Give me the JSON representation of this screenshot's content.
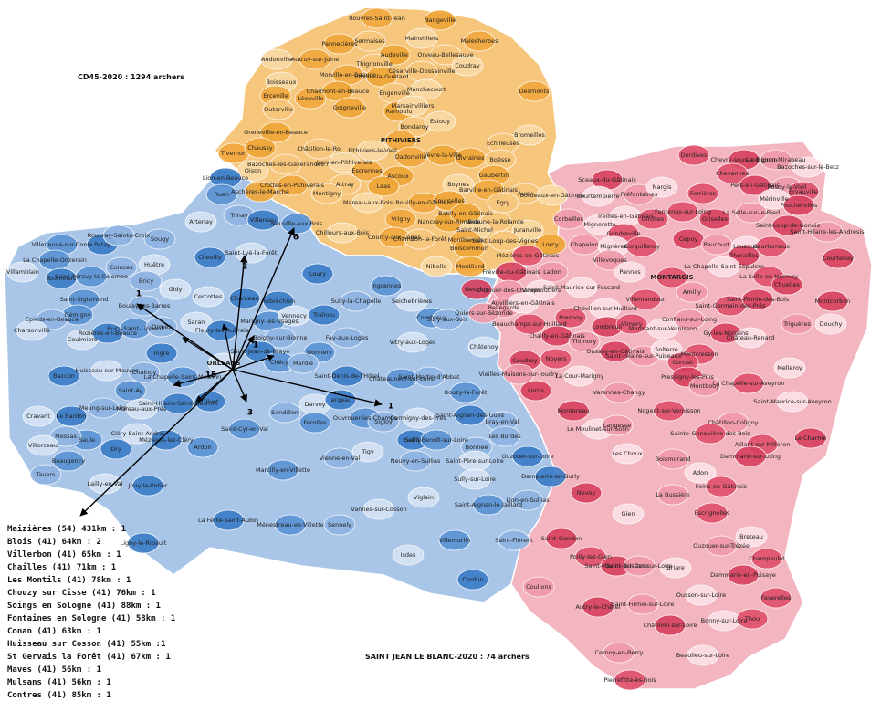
{
  "header": {
    "title": "CD45-2020 : 1294 archers"
  },
  "footer": {
    "caption": "SAINT JEAN LE BLANC-2020 : 74 archers"
  },
  "distant_clubs": [
    "Maizières (54) 431km : 1",
    "Blois (41) 64km : 2",
    "Villerbon (41) 65km : 1",
    "Chailles (41) 71km : 1",
    "Les Montils (41) 78km : 1",
    "Chouzy sur Cisse (41) 76km : 1",
    "Soings en Sologne (41) 88km : 1",
    "Fontaines en Sologne (41) 58km : 1",
    "Conan (41) 63km : 1",
    "Huisseau sur Cosson (41) 55km :1",
    "St Gervais la Forêt (41) 67km : 1",
    "Maves (41) 56km : 1",
    "Mulsans (41) 56km : 1",
    "Contres (41) 85km : 1"
  ],
  "arrows": [
    1,
    2,
    6,
    1,
    15,
    3,
    1
  ],
  "communes": {
    "north": [
      "Rouvres-Saint-Jean",
      "Nangeville",
      "Sermaises",
      "Mainvilliers",
      "Malesherbes",
      "Pannecières",
      "Orveau-Bellesauve",
      "Andonville",
      "Autruy-sur-Juine",
      "Audeville",
      "Thignonville",
      "Coudray",
      "Morville-en-Beauce",
      "Intville-la-Guétard",
      "Césarville-Dossainville",
      "Boisseaux",
      "Erceville",
      "Charmont-en-Beauce",
      "Engenville",
      "Manchecourt",
      "Léouville",
      "Ramoulu",
      "Outarville",
      "Marsainvilliers",
      "Desmonts",
      "Goigneville",
      "Bondaroy",
      "Estouy",
      "PITHIVIERS",
      "Greneville-en-Beauce",
      "Châtillon-le-Roi",
      "Pithiviers-le-Vieil",
      "Dadonville",
      "Yèvre-la-Ville",
      "Echilleuses",
      "Bromeilles",
      "Tivernon",
      "Chaussy",
      "Bazoches-les-Gallerandes",
      "Jouy-en-Pithiverais",
      "Escrennes",
      "Givraines",
      "Boësse",
      "Oison",
      "Gaubertin",
      "Ascoux",
      "Attray",
      "Boynes",
      "Barville-en-Gâtinais",
      "Laas",
      "Auxy",
      "Bordeaux-en-Gâtinais",
      "Crottes-en-Pithiverais",
      "Aschères-le-Marché",
      "Montigny",
      "Mareau-aux-Bois",
      "Bouilly-en-Gâtinais",
      "Courcelles",
      "Egry",
      "Chilleurs-aux-Bois",
      "Vrigny",
      "Nancray-sur-Rimarde",
      "Beaune-la-Rolande",
      "Juranville",
      "Courcy-aux-Loges",
      "Batilly-en-Gâtinais",
      "Chambon-la-Forêt",
      "Saint-Michel",
      "Montbarrois",
      "Boiscommun",
      "Saint-Loup-des-Vignes",
      "Nibelle",
      "Montliard",
      "Lorcy"
    ],
    "west": [
      "Lion-en-Beauce",
      "Ruan",
      "Trinay",
      "Artenay",
      "Villereau",
      "Neuville-aux-Bois",
      "Sougy",
      "Saint-Lyé-la-Forêt",
      "Patay",
      "Villeneuve-sur-Conie",
      "Rouvray-Sainte-Croix",
      "Huêtre",
      "Chevilly",
      "La Chapelle-Onzerain",
      "Coinces",
      "Villamblain",
      "Tournoisis",
      "Saint-Péravy-la-Colombe",
      "Bricy",
      "Gidy",
      "Loury",
      "Saint-Sigismond",
      "Boulay-les-Barres",
      "Cercottes",
      "Rebréchien",
      "Ingrannes",
      "Sully-la-Chapelle",
      "Seichebrières",
      "Chanteau",
      "Gémigny",
      "Epieds-en-Beauce",
      "Coulmiers",
      "Rozières-en-Beauce",
      "Bucy-Saint-Liphard",
      "Ormes",
      "Saran",
      "Fleury-les-Aubrais",
      "Marigny-les-Usages",
      "Boigny-sur-Bionne",
      "Vennecy",
      "Traînou",
      "Combreux",
      "Sury-aux-Bois",
      "Charsonville",
      "Ingré",
      "Donnery",
      "Fay-aux-Loges",
      "Vitry-aux-Loges",
      "Saint-Jean-de-Braye",
      "Chécy",
      "Mardié",
      "Huisseau-sur-Mauves",
      "Baccon",
      "La Chapelle-Saint-Mesmin",
      "Chaingy",
      "ORLEANS",
      "Saint-Denis-de-l'Hôtel",
      "Châteauneuf-sur-Loire",
      "Saint-Martin-d'Abbat",
      "Châtenoy",
      "Saint-Hilaire-Saint-Mesmin",
      "Saint-Ay",
      "Meung-sur-Loire",
      "Mareau-aux-Prés",
      "Olivet",
      "Saint-Cyr-en-Val",
      "Sandillon",
      "Darvoy",
      "Jargeau",
      "Ouvrouer-les-Champs",
      "Sigloy",
      "Germigny-des-Prés",
      "Saint-Aignan-des-Gués",
      "Bouzy-la-Forêt",
      "Bray-en-Val",
      "Cravant",
      "Le Bardon",
      "Férolles",
      "Vienne-en-Val",
      "Tigy",
      "Guilly",
      "Saint-Benoît-sur-Loire",
      "Les Bordes",
      "Cléry-Saint-André",
      "Mézières-lez-Cléry",
      "Baule",
      "Messas",
      "Villorceau",
      "Dry",
      "Ardon",
      "Bonnée",
      "Saint-Père-sur-Loire",
      "Ouzouer-sur-Loire",
      "Beaugency",
      "Tavers",
      "Lailly-en-Val",
      "Jouy-le-Potier",
      "Marcilly-en-Villette",
      "Neuvy-en-Sullias",
      "Sully-sur-Loire",
      "Dampierre-en-Burly",
      "Saint-Aignan-le-Jaillard",
      "Lion-en-Sullias",
      "Viglain",
      "La Ferté-Saint-Aubin",
      "Ménestreau-en-Villette",
      "Sennely",
      "Vannes-sur-Cosson",
      "Ligny-le-Ribault",
      "Villemurlin",
      "Saint-Florent",
      "Isdes",
      "Cerdon"
    ],
    "east": [
      "Dordives",
      "Chevry-sous-le-Bignon",
      "Le Bignon-Mirabeau",
      "Bazoches-sur-le-Betz",
      "Chevannes",
      "Sceaux-du-Gâtinais",
      "Préfontaines",
      "Nargis",
      "Ferrières",
      "Pers-en-Gâtinais",
      "Rosoy-le-Vieil",
      "Courtempierre",
      "Fontenay-sur-Loing",
      "Griselles",
      "La Selle-sur-le-Bied",
      "Mérinville",
      "Ervauville",
      "Fouchérolles",
      "Corbeilles",
      "Treilles-en-Gâtinais",
      "Girolles",
      "Saint-Loup-de-Gonois",
      "Saint-Hilaire-les-Andrésis",
      "Mignerette",
      "Gondreville",
      "Cepoy",
      "Paucourt",
      "Louzouer",
      "Courtemaux",
      "Courtenay",
      "Chapelon",
      "Mignères",
      "Corquilleroy",
      "Thorailles",
      "Villevoques",
      "La Chapelle-Saint-Sépulcre",
      "Mézières-en-Gâtinais",
      "Fréville-du-Gâtinais",
      "Ladon",
      "Pannes",
      "MONTARGIS",
      "Nesploy",
      "Ouzouer-des-Champs",
      "Saint-Maurice-sur-Fessard",
      "La Selle-en-Hermoy",
      "Chuelles",
      "Amilly",
      "Villemoutiers",
      "Villemandeur",
      "Montcorbon",
      "Bellegarde",
      "Chevillon-sur-Huillard",
      "Saint-Germain-des-Prés",
      "Saint-Firmin-des-Bois",
      "Quiers-sur-Bézonde",
      "Auvilliers-en-Gâtinais",
      "Presnoy",
      "Lombreuil",
      "Conflans-sur-Loing",
      "Mormant-sur-Vernisson",
      "Vimory",
      "Gy-les-Nonains",
      "Triguères",
      "Douchy",
      "Beauchamps-sur-Huillard",
      "Chailly-en-Gâtinais",
      "Thimory",
      "Château-Renard",
      "Noyers",
      "Oussoy-en-Gâtinais",
      "Saint-Hilaire-sur-Puiseaux",
      "Solterre",
      "Montcresson",
      "Coudroy",
      "Vieilles-Maisons-sur-Joudry",
      "La Cour-Marigny",
      "Cortrat",
      "Pressigny-les-Pins",
      "Montbouy",
      "Melleroy",
      "La Chapelle-sur-Aveyron",
      "Lorris",
      "Varennes-Changy",
      "Saint-Maurice-sur-Aveyron",
      "Nogent-sur-Vernisson",
      "Montereau",
      "Châtillon-Coligny",
      "Le Moulinet-sur-Solin",
      "Sainte-Geneviève-des-Bois",
      "Le Charme",
      "Langesse",
      "Les Choux",
      "Aillant-sur-Milleron",
      "Dammarie-sur-Loing",
      "Boismorand",
      "Adon",
      "Feins-en-Gâtinais",
      "Nevoy",
      "La Bussière",
      "Gien",
      "Escrignelles",
      "Saint-Gondon",
      "Ouzouer-sur-Trézée",
      "Breteau",
      "Poilly-lez-Gien",
      "Saint-Martin-sur-Ocre",
      "Saint-Brisson-sur-Loire",
      "Briare",
      "Champoulet",
      "Dammarie-en-Puisaye",
      "Coullons",
      "Ousson-sur-Loire",
      "Faverelles",
      "Autry-le-Châtel",
      "Saint-Firmin-sur-Loire",
      "Bonny-sur-Loire",
      "Thou",
      "Châtillon-sur-Loire",
      "Cernoy-en-Berry",
      "Beaulieu-sur-Loire",
      "Pierrefitte-ès-Bois"
    ]
  }
}
